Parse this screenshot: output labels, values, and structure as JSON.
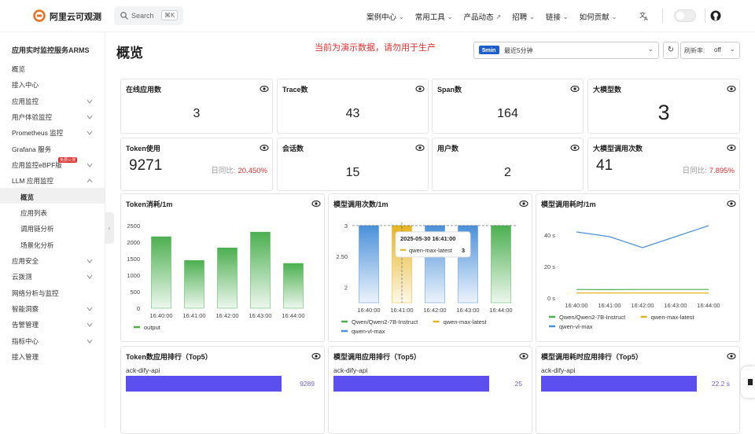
{
  "header": {
    "logo": "阿里云可观测",
    "search": "Search",
    "shortcut": "⌘K",
    "nav": [
      {
        "label": "案例中心",
        "menu": true
      },
      {
        "label": "常用工具",
        "menu": true
      },
      {
        "label": "产品动态",
        "external": true
      },
      {
        "label": "招聘",
        "menu": true
      },
      {
        "label": "链接",
        "menu": true
      },
      {
        "label": "如何贡献",
        "menu": true
      }
    ]
  },
  "sidebar": {
    "title": "应用实时监控服务ARMS",
    "items": [
      {
        "label": "概览"
      },
      {
        "label": "接入中心"
      },
      {
        "label": "应用监控",
        "expandable": true
      },
      {
        "label": "用户体验监控",
        "expandable": true
      },
      {
        "label": "Prometheus 监控",
        "expandable": true
      },
      {
        "label": "Grafana 服务"
      },
      {
        "label": "应用监控eBPF版",
        "expandable": true,
        "badge": "免费公测"
      },
      {
        "label": "LLM 应用监控",
        "expanded": true,
        "children": [
          {
            "label": "概览",
            "active": true
          },
          {
            "label": "应用列表"
          },
          {
            "label": "调用链分析"
          },
          {
            "label": "场景化分析"
          }
        ]
      },
      {
        "label": "应用安全",
        "expandable": true
      },
      {
        "label": "云拨测",
        "expandable": true
      },
      {
        "label": "网络分析与监控"
      },
      {
        "label": "智能洞察",
        "expandable": true
      },
      {
        "label": "告警管理",
        "expandable": true
      },
      {
        "label": "指标中心",
        "expandable": true
      },
      {
        "label": "接入管理"
      }
    ]
  },
  "page": {
    "title": "概览",
    "notice": "当前为演示数据，请勿用于生产",
    "time_badge": "5min",
    "time_range": "最近5分钟",
    "refresh_label": "刷新率:",
    "refresh_value": "off"
  },
  "cards": [
    {
      "title": "在线应用数",
      "value": 3
    },
    {
      "title": "Trace数",
      "value": 43
    },
    {
      "title": "Span数",
      "value": 164
    },
    {
      "title": "大模型数",
      "value": 3
    },
    {
      "title": "Token使用",
      "value": 9271,
      "compare_label": "日同比:",
      "compare": {
        "value": 20.45,
        "label": "20.450%"
      }
    },
    {
      "title": "会话数",
      "value": 15
    },
    {
      "title": "用户数",
      "value": 2
    },
    {
      "title": "大模型调用次数",
      "value": 41,
      "compare_label": "日同比:",
      "compare": {
        "value": 7.895,
        "label": "7.895%"
      }
    }
  ],
  "chart_data": [
    {
      "type": "bar",
      "title": "Token消耗/1m",
      "categories": [
        "16:40:00",
        "16:41:00",
        "16:42:00",
        "16:43:00",
        "16:44:00"
      ],
      "series": [
        {
          "name": "output",
          "color": "#4caf50",
          "values": [
            2170,
            1450,
            1830,
            2310,
            1360
          ]
        }
      ],
      "ylim": [
        0,
        2600
      ],
      "yticks": [
        0,
        500,
        1000,
        1500,
        2000,
        2500
      ]
    },
    {
      "type": "bar",
      "title": "模型调用次数/1m",
      "categories": [
        "16:40:00",
        "16:41:00",
        "16:42:00",
        "16:43:00",
        "16:44:00"
      ],
      "series": [
        {
          "name": "Qwen/Qwen2-7B-Instruct",
          "color": "#4caf50",
          "values": [
            null,
            null,
            null,
            null,
            3
          ]
        },
        {
          "name": "qwen-max-latest",
          "color": "#e6b422",
          "values": [
            null,
            3,
            null,
            null,
            null
          ]
        },
        {
          "name": "qwen-vl-max",
          "color": "#4a90d9",
          "values": [
            3,
            null,
            3,
            3,
            null
          ]
        }
      ],
      "ylim": [
        1.75,
        3.05
      ],
      "yticks": [
        2,
        {
          "value": 2.5,
          "label": "2.50"
        },
        3
      ],
      "tooltip": {
        "title": "2025-05-30 16:41:00",
        "name": "qwen-max-latest",
        "value": 3
      }
    },
    {
      "type": "line",
      "title": "模型调用耗时/1m",
      "categories": [
        "16:40:00",
        "16:41:00",
        "16:42:00",
        "16:43:00",
        "16:44:00"
      ],
      "series": [
        {
          "name": "Qwen/Qwen2-7B-Instruct",
          "color": "#4caf50",
          "values": [
            5.4,
            5.3,
            5.4,
            5.4,
            5.4
          ]
        },
        {
          "name": "qwen-max-latest",
          "color": "#e6b422",
          "values": [
            3.2,
            3.2,
            3.2,
            3.2,
            3.2
          ]
        },
        {
          "name": "qwen-vl-max",
          "color": "#4a90d9",
          "values": [
            42,
            39,
            32,
            39,
            46
          ]
        }
      ],
      "ylim": [
        0,
        48
      ],
      "yticks": [
        {
          "value": 0,
          "label": "0 s"
        },
        {
          "value": 20,
          "label": "20 s"
        },
        {
          "value": 40,
          "label": "40 s"
        }
      ]
    },
    {
      "type": "ranking",
      "title": "Token数应用排行（Top5）",
      "categories": [
        "ack-dify-api"
      ],
      "values": [
        9289
      ],
      "color": "#5b4ff0"
    },
    {
      "type": "ranking",
      "title": "模型调用应用排行（Top5）",
      "categories": [
        "ack-dify-api"
      ],
      "values": [
        25
      ],
      "color": "#5b4ff0"
    },
    {
      "type": "ranking",
      "title": "模型调用耗时应用排行（Top5）",
      "categories": [
        "ack-dify-api"
      ],
      "values": [
        22.2
      ],
      "value_labels": [
        "22.2 s"
      ],
      "color": "#5b4ff0"
    }
  ]
}
